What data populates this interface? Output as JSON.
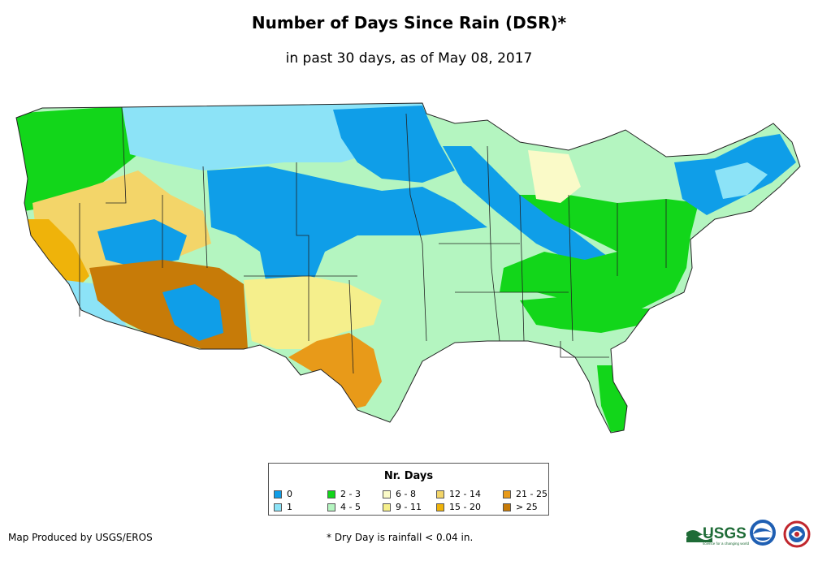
{
  "header": {
    "title": "Number of Days Since Rain (DSR)*",
    "subtitle": "in past 30 days, as of May 08, 2017"
  },
  "colors": {
    "c0": "#0f9ee8",
    "c1": "#8ce3f7",
    "c2_3": "#12d61a",
    "c4_5": "#b4f5c0",
    "c6_8": "#fafac8",
    "c9_11": "#f5ef8c",
    "c12_14": "#f3d569",
    "c15_20": "#efb30a",
    "c21_25": "#e89a19",
    "c_gt25": "#c77b08",
    "border": "#222222"
  },
  "legend": {
    "title": "Nr. Days",
    "items": [
      {
        "label": "0",
        "color": "#0f9ee8"
      },
      {
        "label": "1",
        "color": "#8ce3f7"
      },
      {
        "label": "2 - 3",
        "color": "#12d61a"
      },
      {
        "label": "4 - 5",
        "color": "#b4f5c0"
      },
      {
        "label": "6 - 8",
        "color": "#fafac8"
      },
      {
        "label": "9 - 11",
        "color": "#f5ef8c"
      },
      {
        "label": "12 - 14",
        "color": "#f3d569"
      },
      {
        "label": "15 - 20",
        "color": "#efb30a"
      },
      {
        "label": "21 - 25",
        "color": "#e89a19"
      },
      {
        "label": "> 25",
        "color": "#c77b08"
      }
    ]
  },
  "footer": {
    "credit": "Map Produced by USGS/EROS",
    "footnote": "* Dry Day is rainfall < 0.04 in.",
    "usgs_logo_text": "USGS",
    "usgs_tagline": "science for a changing world"
  }
}
